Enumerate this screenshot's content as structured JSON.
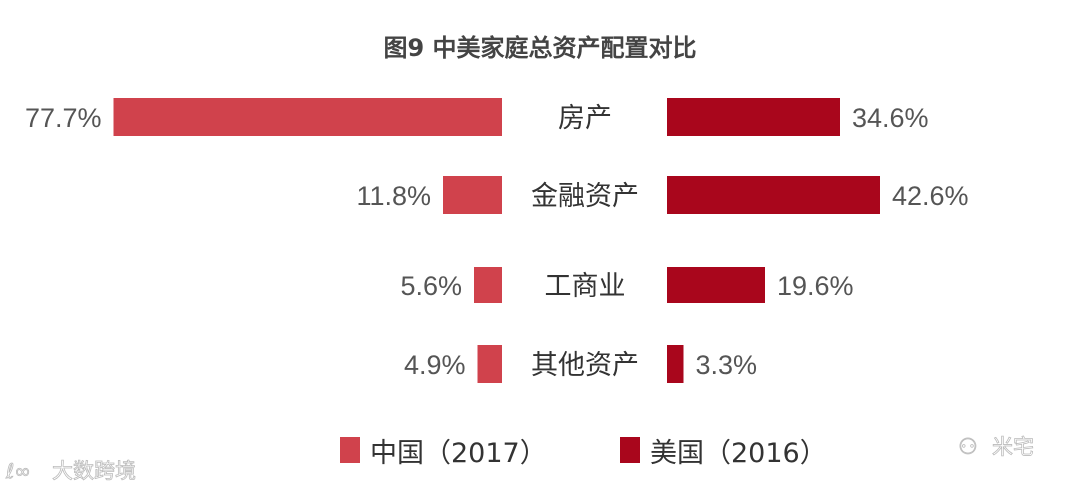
{
  "chart_data": {
    "type": "bar",
    "title": "图9 中美家庭总资产配置对比",
    "categories": [
      "房产",
      "金融资产",
      "工商业",
      "其他资产"
    ],
    "series": [
      {
        "name": "中国（2017）",
        "values": [
          77.7,
          11.8,
          5.6,
          4.9
        ],
        "labels": [
          "77.7%",
          "11.8%",
          "5.6%",
          "4.9%"
        ],
        "color": "#d0424c"
      },
      {
        "name": "美国（2016）",
        "values": [
          34.6,
          42.6,
          19.6,
          3.3
        ],
        "labels": [
          "34.6%",
          "42.6%",
          "19.6%",
          "3.3%"
        ],
        "color": "#a9061c"
      }
    ],
    "unit": "%",
    "legend": "bottom"
  },
  "watermarks": {
    "left": "大数跨境",
    "right": "米宅"
  }
}
